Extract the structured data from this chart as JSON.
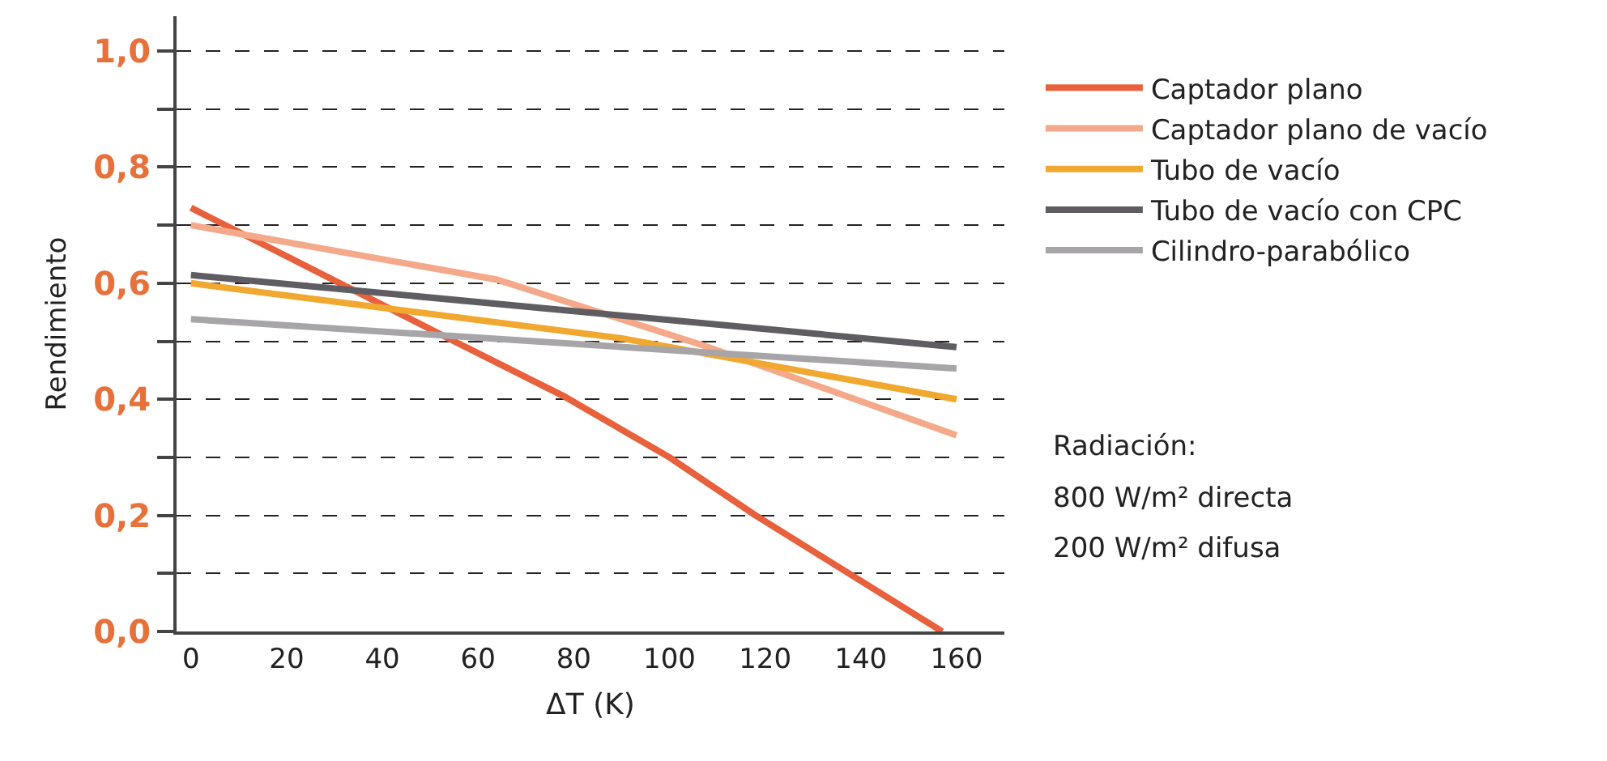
{
  "chart_data": {
    "type": "line",
    "xlabel": "ΔT (K)",
    "ylabel": "Rendimiento",
    "xlim": [
      -3,
      170
    ],
    "xticks": [
      0,
      20,
      40,
      60,
      80,
      100,
      120,
      140,
      160
    ],
    "ylim": [
      0,
      1.06
    ],
    "yticks": [
      {
        "value": 0,
        "label": "0,0"
      },
      {
        "value": 0.1,
        "label": null
      },
      {
        "value": 0.2,
        "label": "0,2"
      },
      {
        "value": 0.3,
        "label": null
      },
      {
        "value": 0.4,
        "label": "0,4"
      },
      {
        "value": 0.5,
        "label": null
      },
      {
        "value": 0.6,
        "label": "0,6"
      },
      {
        "value": 0.7,
        "label": null
      },
      {
        "value": 0.8,
        "label": "0,8"
      },
      {
        "value": 0.9,
        "label": null
      },
      {
        "value": 1,
        "label": "1,0"
      }
    ],
    "grid": "y",
    "legend": "right",
    "marker": "none",
    "line_style": "solid",
    "series": [
      {
        "name": "Captador plano",
        "color": "#e8603c",
        "x": [
          0,
          55,
          78,
          100,
          118,
          157
        ],
        "values": [
          0.73,
          0.5,
          0.405,
          0.3,
          0.2,
          0
        ]
      },
      {
        "name": "Captador plano de vacío",
        "color": "#f4a98a",
        "x": [
          0,
          64,
          107,
          160
        ],
        "values": [
          0.7,
          0.606,
          0.493,
          0.338
        ]
      },
      {
        "name": "Tubo de vacío",
        "color": "#f0a830",
        "x": [
          0,
          90,
          160
        ],
        "values": [
          0.6,
          0.505,
          0.4
        ]
      },
      {
        "name": "Tubo de vacío con CPC",
        "color": "#5f5d62",
        "x": [
          0,
          160
        ],
        "values": [
          0.614,
          0.49
        ]
      },
      {
        "name": "Cilindro-parabólico",
        "color": "#a7a5a8",
        "x": [
          0,
          160
        ],
        "values": [
          0.538,
          0.453
        ]
      }
    ],
    "annotations": [
      "Radiación:",
      "800 W/m² directa",
      "200 W/m² difusa"
    ]
  }
}
